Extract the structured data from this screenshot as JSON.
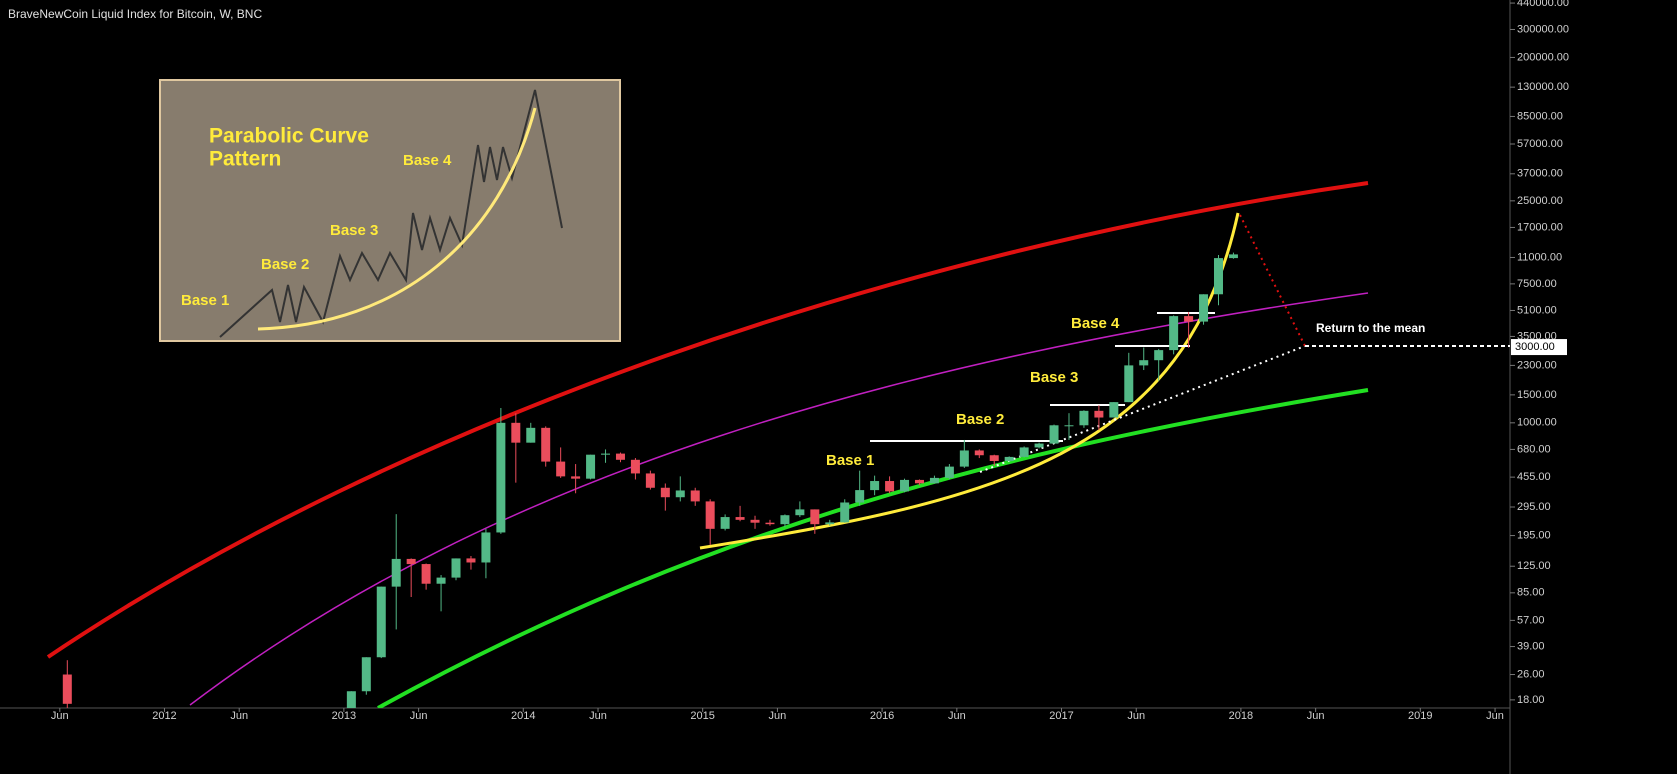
{
  "chart_data": {
    "type": "candlestick",
    "title": "BraveNewCoin Liquid Index for Bitcoin, W, BNC",
    "log_scale": true,
    "up_color": "#53b987",
    "down_color": "#eb4d5c",
    "x": [
      "2011-06",
      "2013-01",
      "2013-02",
      "2013-03",
      "2013-04",
      "2013-05",
      "2013-06",
      "2013-07",
      "2013-08",
      "2013-09",
      "2013-10",
      "2013-11",
      "2013-12",
      "2014-01",
      "2014-02",
      "2014-03",
      "2014-04",
      "2014-05",
      "2014-06",
      "2014-07",
      "2014-08",
      "2014-09",
      "2014-10",
      "2014-11",
      "2014-12",
      "2015-01",
      "2015-02",
      "2015-03",
      "2015-04",
      "2015-05",
      "2015-06",
      "2015-07",
      "2015-08",
      "2015-09",
      "2015-10",
      "2015-11",
      "2015-12",
      "2016-01",
      "2016-02",
      "2016-03",
      "2016-04",
      "2016-05",
      "2016-06",
      "2016-07",
      "2016-08",
      "2016-09",
      "2016-10",
      "2016-11",
      "2016-12",
      "2017-01",
      "2017-02",
      "2017-03",
      "2017-04",
      "2017-05",
      "2017-06",
      "2017-07",
      "2017-08",
      "2017-09",
      "2017-10",
      "2017-11",
      "2017-12"
    ],
    "open": [
      26,
      13.5,
      20.4,
      33.4,
      93,
      139,
      129,
      97,
      106,
      140,
      132,
      204,
      1000,
      750,
      930,
      570,
      460,
      445,
      630,
      640,
      585,
      480,
      390,
      340,
      375,
      320,
      215,
      255,
      245,
      235,
      230,
      262,
      285,
      230,
      236,
      315,
      377,
      430,
      370,
      437,
      416,
      450,
      530,
      670,
      625,
      575,
      610,
      700,
      740,
      965,
      965,
      1190,
      1080,
      1350,
      2300,
      2480,
      2870,
      4700,
      4340,
      6450,
      10900
    ],
    "high": [
      32,
      20.4,
      33.4,
      93,
      266,
      140,
      130,
      110,
      140,
      145,
      215,
      1240,
      1150,
      1000,
      950,
      700,
      550,
      630,
      680,
      650,
      600,
      500,
      415,
      460,
      390,
      330,
      265,
      300,
      260,
      245,
      265,
      320,
      285,
      245,
      330,
      500,
      465,
      460,
      445,
      440,
      465,
      550,
      780,
      680,
      630,
      615,
      710,
      750,
      975,
      1150,
      1200,
      1290,
      1350,
      2760,
      2980,
      2920,
      4750,
      4980,
      6450,
      11400,
      11800
    ],
    "low": [
      16,
      13.2,
      19.4,
      33,
      50,
      80,
      89,
      65,
      102,
      119,
      105,
      200,
      420,
      750,
      530,
      450,
      360,
      440,
      560,
      565,
      440,
      380,
      280,
      320,
      300,
      170,
      210,
      240,
      215,
      225,
      220,
      255,
      200,
      225,
      235,
      300,
      350,
      360,
      365,
      405,
      415,
      440,
      520,
      600,
      535,
      570,
      605,
      690,
      740,
      780,
      930,
      900,
      1080,
      1350,
      2150,
      1840,
      2700,
      2970,
      4150,
      5500,
      10800
    ],
    "close": [
      17,
      20.4,
      33.4,
      93,
      139,
      129,
      97,
      106,
      140,
      132,
      204,
      1000,
      750,
      930,
      570,
      460,
      445,
      630,
      640,
      585,
      480,
      390,
      340,
      375,
      320,
      215,
      255,
      245,
      235,
      230,
      262,
      285,
      230,
      236,
      315,
      377,
      430,
      370,
      437,
      416,
      450,
      530,
      670,
      625,
      575,
      610,
      700,
      740,
      965,
      965,
      1190,
      1080,
      1350,
      2300,
      2480,
      2870,
      4700,
      4340,
      6450,
      10900,
      11500
    ],
    "xlim": [
      "2011-02",
      "2019-07"
    ],
    "xticks": [
      {
        "value": "2011-06",
        "label": "Jun"
      },
      {
        "value": "2012-01",
        "label": "2012"
      },
      {
        "value": "2012-06",
        "label": "Jun"
      },
      {
        "value": "2013-01",
        "label": "2013"
      },
      {
        "value": "2013-06",
        "label": "Jun"
      },
      {
        "value": "2014-01",
        "label": "2014"
      },
      {
        "value": "2014-06",
        "label": "Jun"
      },
      {
        "value": "2015-01",
        "label": "2015"
      },
      {
        "value": "2015-06",
        "label": "Jun"
      },
      {
        "value": "2016-01",
        "label": "2016"
      },
      {
        "value": "2016-06",
        "label": "Jun"
      },
      {
        "value": "2017-01",
        "label": "2017"
      },
      {
        "value": "2017-06",
        "label": "Jun"
      },
      {
        "value": "2018-01",
        "label": "2018"
      },
      {
        "value": "2018-06",
        "label": "Jun"
      },
      {
        "value": "2019-01",
        "label": "2019"
      },
      {
        "value": "2019-06",
        "label": "Jun"
      }
    ],
    "ylim": [
      16,
      460000
    ],
    "yticks": [
      {
        "value": 440000,
        "label": "440000.00"
      },
      {
        "value": 300000,
        "label": "300000.00"
      },
      {
        "value": 200000,
        "label": "200000.00"
      },
      {
        "value": 130000,
        "label": "130000.00"
      },
      {
        "value": 85000,
        "label": "85000.00"
      },
      {
        "value": 57000,
        "label": "57000.00"
      },
      {
        "value": 37000,
        "label": "37000.00"
      },
      {
        "value": 25000,
        "label": "25000.00"
      },
      {
        "value": 17000,
        "label": "17000.00"
      },
      {
        "value": 11000,
        "label": "11000.00"
      },
      {
        "value": 7500,
        "label": "7500.00"
      },
      {
        "value": 5100,
        "label": "5100.00"
      },
      {
        "value": 3500,
        "label": "3500.00"
      },
      {
        "value": 2300,
        "label": "2300.00"
      },
      {
        "value": 1500,
        "label": "1500.00"
      },
      {
        "value": 1000,
        "label": "1000.00"
      },
      {
        "value": 680,
        "label": "680.00"
      },
      {
        "value": 455,
        "label": "455.00"
      },
      {
        "value": 295,
        "label": "295.00"
      },
      {
        "value": 195,
        "label": "195.00"
      },
      {
        "value": 125,
        "label": "125.00"
      },
      {
        "value": 85,
        "label": "85.00"
      },
      {
        "value": 57,
        "label": "57.00"
      },
      {
        "value": 39,
        "label": "39.00"
      },
      {
        "value": 26,
        "label": "26.00"
      },
      {
        "value": 18,
        "label": "18.00"
      }
    ],
    "target": {
      "value": 3000,
      "label": "3000.00",
      "text": "Return to the mean"
    },
    "annotations": [
      "Base 1",
      "Base 2",
      "Base 3",
      "Base 4"
    ],
    "inset": {
      "title": "Parabolic Curve",
      "title2": "Pattern",
      "labels": [
        "Base 1",
        "Base 2",
        "Base 3",
        "Base 4"
      ]
    }
  }
}
